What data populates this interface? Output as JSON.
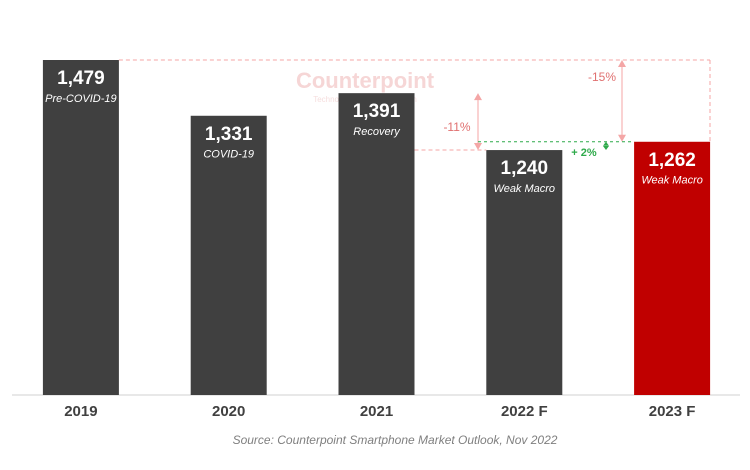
{
  "chart_data": {
    "type": "bar",
    "categories": [
      "2019",
      "2020",
      "2021",
      "2022 F",
      "2023 F"
    ],
    "values": [
      1479,
      1331,
      1391,
      1240,
      1262
    ],
    "value_labels": [
      "1,479",
      "1,331",
      "1,391",
      "1,240",
      "1,262"
    ],
    "labels": [
      "Pre-COVID-19",
      "COVID-19",
      "Recovery",
      "Weak Macro",
      "Weak Macro"
    ],
    "colors": [
      "#404040",
      "#404040",
      "#404040",
      "#404040",
      "#c00000"
    ],
    "ylim": [
      590,
      1479
    ],
    "annotations": [
      "-15%",
      "-11%",
      "+ 2%"
    ],
    "watermark": "Counterpoint",
    "watermark_subtitle": "Technology Market Research",
    "source": "Source: Counterpoint Smartphone Market Outlook, Nov 2022"
  }
}
